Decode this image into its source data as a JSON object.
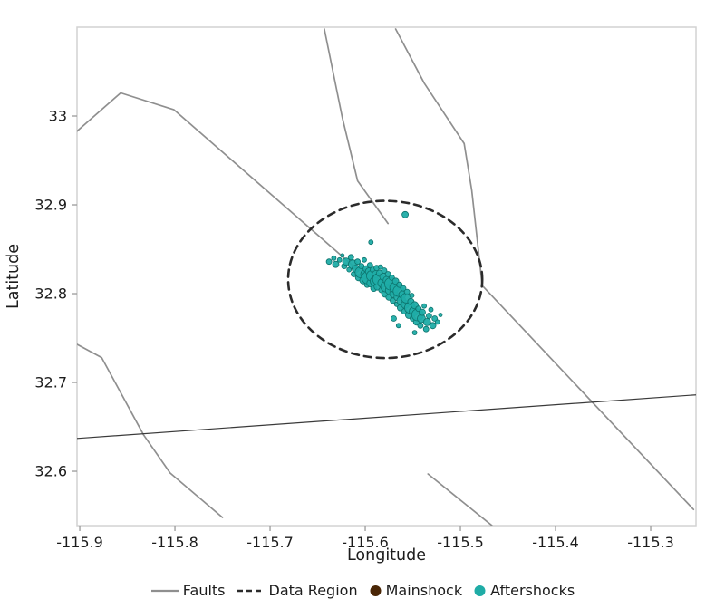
{
  "chart_data": {
    "type": "scatter",
    "title": "",
    "xlabel": "Longitude",
    "ylabel": "Latitude",
    "xlim": [
      -115.9029,
      -115.2524
    ],
    "ylim": [
      32.5388,
      33.1
    ],
    "grid": false,
    "xticks": [
      -115.9,
      -115.8,
      -115.7,
      -115.6,
      -115.5,
      -115.4,
      -115.3
    ],
    "xtick_labels": [
      "-115.9",
      "-115.8",
      "-115.7",
      "-115.6",
      "-115.5",
      "-115.4",
      "-115.3"
    ],
    "yticks": [
      32.6,
      32.7,
      32.8,
      32.9,
      33.0
    ],
    "ytick_labels": [
      "32.6",
      "32.7",
      "32.8",
      "32.9",
      "33"
    ],
    "styles": {
      "fault_color": "#8f8f8f",
      "fault_width": 1.7,
      "frame_color": "#d2d2d2",
      "tick_color": "#9a9a9a",
      "text_color": "#1c1c1c",
      "region_color": "#2b2b2b",
      "aftershock_fill": "#1fae a6",
      "aftershock_color": "#1faca6",
      "aftershock_edge": "#0d736d",
      "mainshock_color": "#4a2606"
    },
    "faults": [
      {
        "points": [
          [
            -115.9029,
            32.983
          ],
          [
            -115.857,
            33.026
          ],
          [
            -115.801,
            33.007
          ],
          [
            -115.608,
            32.827
          ]
        ]
      },
      {
        "points": [
          [
            -115.643,
            33.098
          ],
          [
            -115.624,
            32.998
          ],
          [
            -115.608,
            32.927
          ],
          [
            -115.576,
            32.879
          ]
        ]
      },
      {
        "points": [
          [
            -115.568,
            33.098
          ],
          [
            -115.538,
            33.037
          ],
          [
            -115.496,
            32.969
          ],
          [
            -115.488,
            32.916
          ],
          [
            -115.477,
            32.809
          ],
          [
            -115.255,
            32.557
          ]
        ]
      },
      {
        "points": [
          [
            -115.534,
            32.597
          ],
          [
            -115.467,
            32.539
          ]
        ]
      },
      {
        "points": [
          [
            -115.903,
            32.743
          ],
          [
            -115.877,
            32.728
          ],
          [
            -115.833,
            32.641
          ],
          [
            -115.805,
            32.598
          ],
          [
            -115.75,
            32.548
          ]
        ]
      },
      {
        "points": [
          [
            -115.903,
            32.637
          ],
          [
            -115.252,
            32.686
          ]
        ],
        "color": "#3a3a3a",
        "width": 1.2
      }
    ],
    "data_region": {
      "center": [
        -115.579,
        32.816
      ],
      "rx": 0.102,
      "ry": 0.0885,
      "dash": "8 6",
      "width": 2.6
    },
    "mainshock": {
      "lon": -115.572,
      "lat": 32.806,
      "r": 6.5
    },
    "aftershocks": [
      [
        -115.638,
        32.836,
        3
      ],
      [
        -115.633,
        32.84,
        2.5
      ],
      [
        -115.631,
        32.833,
        3.5
      ],
      [
        -115.627,
        32.838,
        2.5
      ],
      [
        -115.624,
        32.843,
        2
      ],
      [
        -115.622,
        32.831,
        3
      ],
      [
        -115.62,
        32.836,
        4
      ],
      [
        -115.617,
        32.827,
        2.5
      ],
      [
        -115.615,
        32.841,
        3
      ],
      [
        -115.613,
        32.833,
        5
      ],
      [
        -115.612,
        32.822,
        3
      ],
      [
        -115.61,
        32.828,
        4
      ],
      [
        -115.608,
        32.836,
        3
      ],
      [
        -115.607,
        32.818,
        3.5
      ],
      [
        -115.605,
        32.824,
        6
      ],
      [
        -115.604,
        32.831,
        3
      ],
      [
        -115.602,
        32.815,
        4
      ],
      [
        -115.601,
        32.838,
        2.5
      ],
      [
        -115.6,
        32.822,
        5
      ],
      [
        -115.599,
        32.828,
        3.5
      ],
      [
        -115.598,
        32.81,
        3
      ],
      [
        -115.597,
        32.818,
        7
      ],
      [
        -115.596,
        32.825,
        4
      ],
      [
        -115.595,
        32.832,
        3
      ],
      [
        -115.594,
        32.858,
        2.5
      ],
      [
        -115.594,
        32.812,
        4.5
      ],
      [
        -115.593,
        32.82,
        6
      ],
      [
        -115.592,
        32.827,
        3
      ],
      [
        -115.591,
        32.806,
        3.5
      ],
      [
        -115.59,
        32.814,
        5
      ],
      [
        -115.589,
        32.822,
        4
      ],
      [
        -115.588,
        32.829,
        3
      ],
      [
        -115.587,
        32.808,
        4
      ],
      [
        -115.586,
        32.816,
        6.5
      ],
      [
        -115.585,
        32.823,
        3.5
      ],
      [
        -115.584,
        32.83,
        2.5
      ],
      [
        -115.583,
        32.804,
        3
      ],
      [
        -115.582,
        32.812,
        5
      ],
      [
        -115.581,
        32.819,
        4
      ],
      [
        -115.58,
        32.826,
        3
      ],
      [
        -115.558,
        32.889,
        3.5
      ],
      [
        -115.579,
        32.8,
        4
      ],
      [
        -115.578,
        32.808,
        6
      ],
      [
        -115.577,
        32.815,
        4.5
      ],
      [
        -115.576,
        32.822,
        3
      ],
      [
        -115.575,
        32.796,
        3.5
      ],
      [
        -115.574,
        32.804,
        5
      ],
      [
        -115.573,
        32.811,
        7
      ],
      [
        -115.572,
        32.818,
        3
      ],
      [
        -115.571,
        32.792,
        3
      ],
      [
        -115.57,
        32.8,
        4.5
      ],
      [
        -115.569,
        32.807,
        5.5
      ],
      [
        -115.568,
        32.814,
        3.5
      ],
      [
        -115.567,
        32.788,
        2.5
      ],
      [
        -115.566,
        32.796,
        4
      ],
      [
        -115.565,
        32.803,
        6
      ],
      [
        -115.564,
        32.81,
        3
      ],
      [
        -115.563,
        32.784,
        3.5
      ],
      [
        -115.562,
        32.792,
        5
      ],
      [
        -115.561,
        32.799,
        4
      ],
      [
        -115.56,
        32.806,
        3
      ],
      [
        -115.559,
        32.78,
        3
      ],
      [
        -115.558,
        32.788,
        4.5
      ],
      [
        -115.557,
        32.795,
        5.5
      ],
      [
        -115.556,
        32.802,
        3
      ],
      [
        -115.57,
        32.772,
        3
      ],
      [
        -115.565,
        32.764,
        2.5
      ],
      [
        -115.554,
        32.776,
        4
      ],
      [
        -115.553,
        32.784,
        6
      ],
      [
        -115.552,
        32.791,
        3.5
      ],
      [
        -115.551,
        32.798,
        2.5
      ],
      [
        -115.55,
        32.772,
        3
      ],
      [
        -115.549,
        32.78,
        5
      ],
      [
        -115.548,
        32.787,
        4
      ],
      [
        -115.548,
        32.756,
        2.5
      ],
      [
        -115.546,
        32.768,
        3.5
      ],
      [
        -115.545,
        32.776,
        6.5
      ],
      [
        -115.544,
        32.783,
        3
      ],
      [
        -115.542,
        32.764,
        3
      ],
      [
        -115.541,
        32.772,
        4.5
      ],
      [
        -115.54,
        32.779,
        3.5
      ],
      [
        -115.538,
        32.786,
        2.5
      ],
      [
        -115.536,
        32.76,
        3
      ],
      [
        -115.535,
        32.768,
        4
      ],
      [
        -115.533,
        32.775,
        3
      ],
      [
        -115.531,
        32.782,
        2.5
      ],
      [
        -115.529,
        32.764,
        3.5
      ],
      [
        -115.527,
        32.772,
        3
      ],
      [
        -115.524,
        32.768,
        2.5
      ],
      [
        -115.521,
        32.776,
        2
      ]
    ],
    "legend": [
      {
        "label": "Faults",
        "type": "line",
        "color": "#8f8f8f"
      },
      {
        "label": "Data Region",
        "type": "dashed",
        "color": "#2b2b2b"
      },
      {
        "label": "Mainshock",
        "type": "dot",
        "color": "#4a2606"
      },
      {
        "label": "Aftershocks",
        "type": "dot",
        "color": "#1faca6"
      }
    ]
  }
}
